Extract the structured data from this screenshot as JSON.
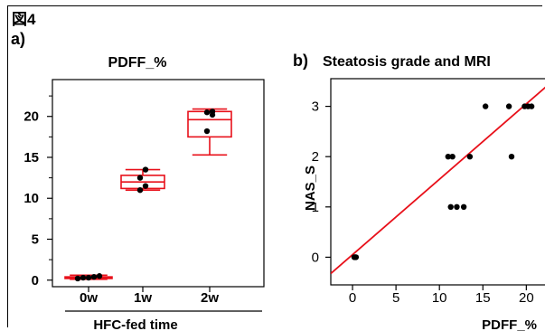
{
  "figure_label": "図4",
  "chart_data": [
    {
      "type": "box",
      "panel_label": "a)",
      "title": "PDFF_%",
      "xlabel": "HFC-fed time",
      "ylabel": "",
      "categories": [
        "0w",
        "1w",
        "2w"
      ],
      "yticks": [
        "0",
        "5",
        "10",
        "15",
        "20"
      ],
      "ylim": [
        -0.8,
        24.5
      ],
      "boxes": [
        {
          "category": "0w",
          "min": 0.1,
          "q1": 0.2,
          "median": 0.3,
          "q3": 0.4,
          "max": 0.6,
          "points": [
            0.2,
            0.3,
            0.3,
            0.4,
            0.5
          ]
        },
        {
          "category": "1w",
          "min": 11.0,
          "q1": 11.2,
          "median": 12.0,
          "q3": 12.8,
          "max": 13.5,
          "points": [
            11.0,
            11.5,
            12.5,
            13.5
          ]
        },
        {
          "category": "2w",
          "min": 15.3,
          "q1": 17.5,
          "median": 19.6,
          "q3": 20.6,
          "max": 20.9,
          "points": [
            18.2,
            20.2,
            20.5,
            20.6
          ]
        }
      ],
      "color": "#e8101a"
    },
    {
      "type": "scatter",
      "panel_label": "b)",
      "title": "Steatosis grade and MRI",
      "xlabel": "PDFF_%",
      "ylabel": "NAS_S",
      "xticks": [
        "0",
        "5",
        "10",
        "15",
        "20"
      ],
      "yticks": [
        "0",
        "1",
        "2",
        "3"
      ],
      "xlim": [
        -2.5,
        23.5
      ],
      "ylim": [
        -0.55,
        3.55
      ],
      "x": [
        0.2,
        0.3,
        0.4,
        11.0,
        11.5,
        11.3,
        12.0,
        12.8,
        13.5,
        15.3,
        18.0,
        18.3,
        19.8,
        20.2,
        20.6
      ],
      "y": [
        0,
        0,
        0,
        2,
        2,
        1,
        1,
        1,
        2,
        3,
        3,
        2,
        3,
        3,
        3
      ],
      "fit_line": {
        "intercept": 0.05,
        "slope": 0.15
      },
      "point_color": "#000000",
      "line_color": "#e8101a"
    }
  ]
}
